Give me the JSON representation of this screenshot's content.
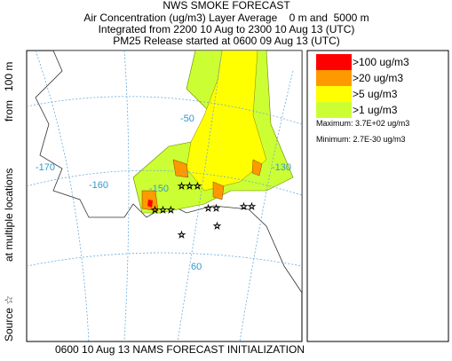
{
  "header": {
    "title": "NWS SMOKE FORECAST",
    "lines": [
      "Air Concentration (ug/m3) Layer Average    0 m and  5000 m",
      "Integrated from 2200 10 Aug to 2300 10 Aug 13 (UTC)",
      "PM25 Release started at 0600 09 Aug 13 (UTC)"
    ]
  },
  "legend": {
    "items": [
      {
        "label": ">100 ug/m3",
        "color": "#ff0000"
      },
      {
        "label": ">20 ug/m3",
        "color": "#ff9900"
      },
      {
        "label": ">5 ug/m3",
        "color": "#ffff00"
      },
      {
        "label": ">1 ug/m3",
        "color": "#ccff33"
      }
    ],
    "maximum": "Maximum: 3.7E+02 ug/m3",
    "minimum": "Minimum: 2.7E-30 ug/m3"
  },
  "side_label": [
    "Source ☆",
    "at multiple locations",
    "from   100 m"
  ],
  "map_labels": [
    "-170",
    "-160",
    "-150",
    "-130",
    "60",
    "-50"
  ],
  "footer": "0600 10 Aug 13 NAMS FORECAST INITIALIZATION"
}
